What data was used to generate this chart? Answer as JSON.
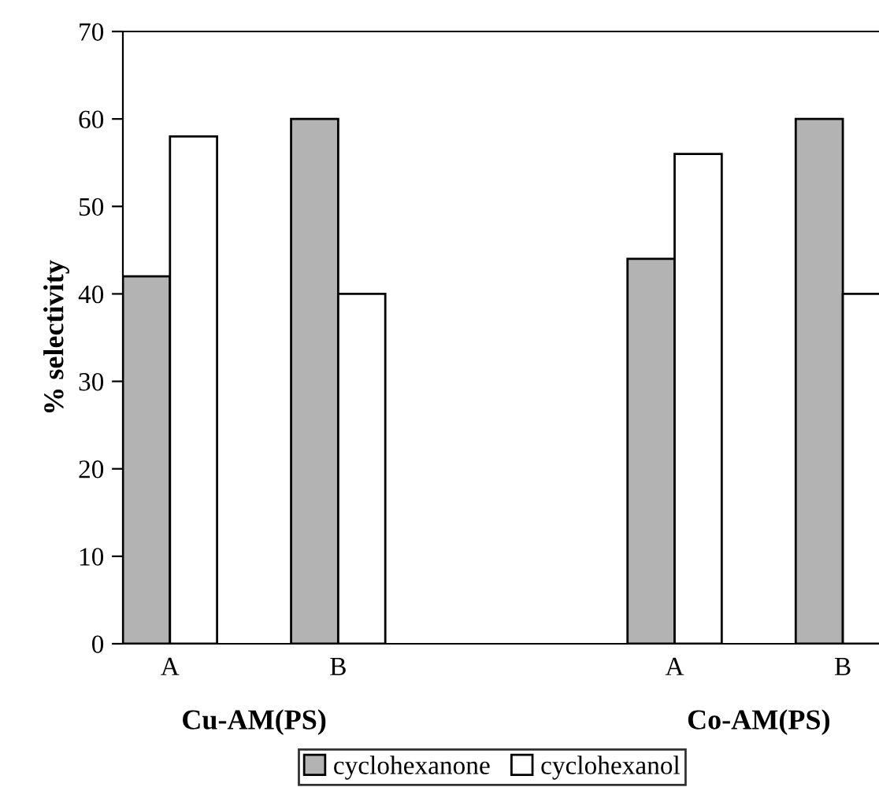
{
  "chart_data": {
    "type": "bar",
    "ylabel": "% selectivity",
    "categories": [
      "A",
      "B",
      null,
      "A",
      "B"
    ],
    "series": [
      {
        "name": "cyclohexanone",
        "color": "#b3b3b3",
        "values": [
          42,
          60,
          null,
          44,
          60
        ]
      },
      {
        "name": "cyclohexanol",
        "color": "#ffffff",
        "values": [
          58,
          40,
          null,
          56,
          40
        ]
      }
    ],
    "ylim": [
      0,
      70
    ],
    "yticks": [
      0,
      10,
      20,
      30,
      40,
      50,
      60,
      70
    ],
    "grid": false,
    "legend": "bottom",
    "annotations": [
      "Cu-AM(PS)",
      "Co-AM(PS)"
    ]
  }
}
